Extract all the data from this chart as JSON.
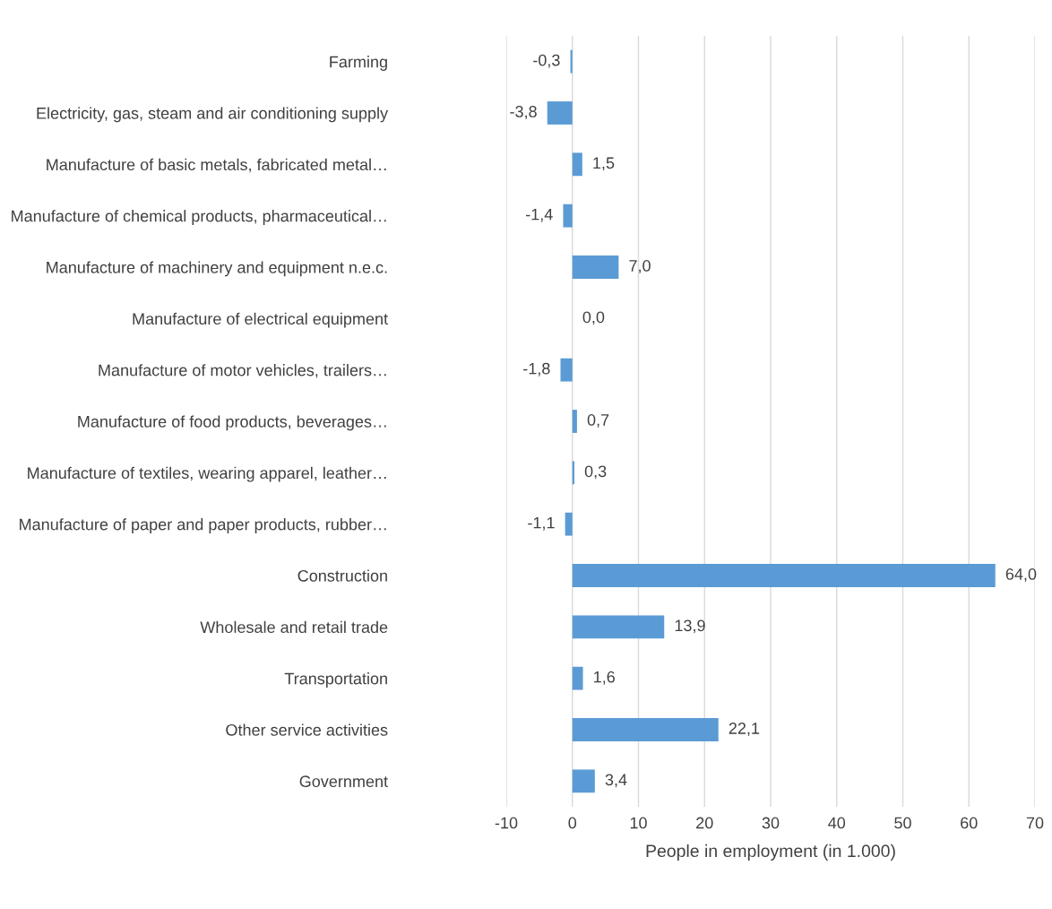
{
  "chart_data": {
    "type": "bar",
    "orientation": "horizontal",
    "xlabel": "People in employment (in 1.000)",
    "categories": [
      "Farming",
      "Electricity, gas, steam and air conditioning supply",
      "Manufacture of basic metals, fabricated metal…",
      "Manufacture of chemical products, pharmaceutical…",
      "Manufacture of machinery and equipment n.e.c.",
      "Manufacture of electrical equipment",
      "Manufacture of motor vehicles, trailers…",
      "Manufacture of food products, beverages…",
      "Manufacture of textiles, wearing apparel, leather…",
      "Manufacture of paper and paper products, rubber…",
      "Construction",
      "Wholesale and retail trade",
      "Transportation",
      "Other service activities",
      "Government"
    ],
    "values": [
      -0.3,
      -3.8,
      1.5,
      -1.4,
      7.0,
      0.0,
      -1.8,
      0.7,
      0.3,
      -1.1,
      64.0,
      13.9,
      1.6,
      22.1,
      3.4
    ],
    "value_labels": [
      "-0,3",
      "-3,8",
      "1,5",
      "-1,4",
      "7,0",
      "0,0",
      "-1,8",
      "0,7",
      "0,3",
      "-1,1",
      "64,0",
      "13,9",
      "1,6",
      "22,1",
      "3,4"
    ],
    "color": "#5b9bd5",
    "xlim": [
      -10,
      70
    ],
    "xticks": [
      -10,
      0,
      10,
      20,
      30,
      40,
      50,
      60,
      70
    ],
    "grid": "x",
    "legend": false
  }
}
